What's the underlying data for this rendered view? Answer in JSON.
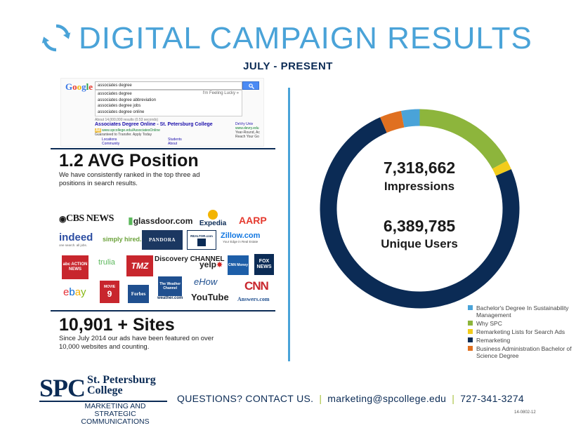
{
  "header": {
    "title": "DIGITAL CAMPAIGN RESULTS",
    "subtitle": "JULY - PRESENT",
    "icon": "refresh-icon",
    "color": "#4aa3d8"
  },
  "google_ad": {
    "logo": "Google",
    "query": "associates degree",
    "suggestions": [
      "associates degree",
      "associates degree abbreviation",
      "associates degree jobs",
      "associates degree online"
    ],
    "lucky": "I'm Feeling Lucky »",
    "results_count": "About 14,000,000 results (0.53 seconds)",
    "ad_title": "Associates Degree Online - St. Petersburg College",
    "ad_badge": "Ad",
    "ad_url": "www.spcollege.edu/AssociatesOnline",
    "ad_line": "Guaranteed to Transfer. Apply Today",
    "sitelinks": [
      "Locations",
      "Community",
      "Students",
      "About"
    ],
    "side_ad": [
      "DeVry Univ",
      "www.devry.edu",
      "Year-Round, Ac",
      "Reach Your Go"
    ]
  },
  "stats": [
    {
      "title": "1.2 AVG Position",
      "desc": "We have consistently ranked in the top three ad positions in search results."
    },
    {
      "title": "10,901 + Sites",
      "desc": "Since July 2014 our ads have been featured on over 10,000 websites and counting."
    }
  ],
  "logos": [
    "CBS NEWS",
    "glassdoor.com",
    "Expedia",
    "AARP",
    "indeed",
    "one search. all jobs.",
    "simply hired.",
    "PANDORA",
    "REALTOR.com",
    "Zillow.com",
    "Your Edge in Real Estate",
    "abc ACTION NEWS",
    "trulia",
    "TMZ",
    "Discovery CHANNEL",
    "yelp",
    "CNN Money",
    "FOX NEWS",
    "ebay",
    "MOVIE",
    "Forbes",
    "The Weather Channel",
    "weather.com",
    "eHow",
    "YouTube",
    "CNN",
    "Answers.com"
  ],
  "totals": {
    "impressions_value": "7,318,662",
    "impressions_label": "Impressions",
    "users_value": "6,389,785",
    "users_label": "Unique Users"
  },
  "chart_data": {
    "type": "pie",
    "title": "",
    "style": "donut",
    "categories": [
      "Bachelor's Degree In Sustainability Management",
      "Why SPC",
      "Remarketing Lists for Search Ads",
      "Remarketing",
      "Business Administration Bachelor of Science Degree"
    ],
    "values": [
      3,
      17,
      1.5,
      75,
      3.5
    ],
    "colors": [
      "#4aa3d8",
      "#8db53c",
      "#f2cc1b",
      "#0b2b55",
      "#e07020"
    ],
    "legend_position": "bottom-right"
  },
  "footer": {
    "logo_big": "SPC",
    "logo_name_1": "St. Petersburg",
    "logo_name_2": "College",
    "dept_1": "MARKETING AND STRATEGIC",
    "dept_2": "COMMUNICATIONS",
    "questions": "QUESTIONS? CONTACT US.",
    "email": "marketing@spcollege.edu",
    "phone": "727-341-3274",
    "separator": "|",
    "code": "14-0802-12"
  }
}
